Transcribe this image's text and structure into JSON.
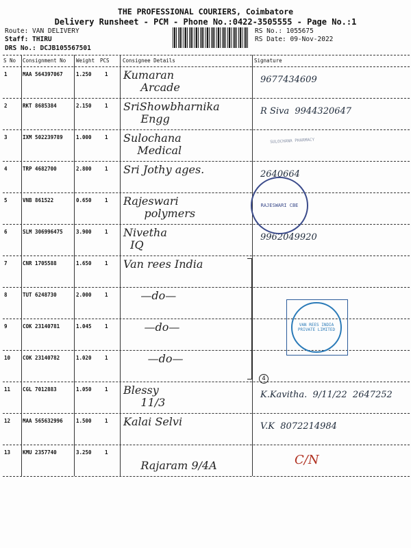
{
  "header": {
    "company": "THE PROFESSIONAL COURIERS, Coimbatore",
    "subtitle": "Delivery Runsheet - PCM - Phone No.:0422-3505555 - Page No.:1",
    "route": "Route: VAN DELIVERY",
    "staff": "Staff: THIRU",
    "drs": "DRS No.: DCJB105567501",
    "rs_no": "RS No.: 1055675",
    "rs_date": "RS Date: 09-Nov-2022"
  },
  "columns": [
    "S No",
    "Consignment No",
    "Weight",
    "PCS",
    "Consignee Details",
    "Signature"
  ],
  "rows": [
    {
      "sno": "1",
      "consignment": "MAA 564397067",
      "weight": "1.250",
      "pcs": "1",
      "consignee": "Kumaran\n     Arcade",
      "signature": "9677434609"
    },
    {
      "sno": "2",
      "consignment": "RKT 8685384",
      "weight": "2.150",
      "pcs": "1",
      "consignee": "SriShowbharnika\n     Engg",
      "signature": "R Siva  9944320647"
    },
    {
      "sno": "3",
      "consignment": "IXM 502239789",
      "weight": "1.000",
      "pcs": "1",
      "consignee": "Sulochana\n    Medical",
      "signature": ""
    },
    {
      "sno": "4",
      "consignment": "TRP 4682700",
      "weight": "2.800",
      "pcs": "1",
      "consignee": "Sri Jothy ages.",
      "signature": "2640664"
    },
    {
      "sno": "5",
      "consignment": "VNB 861522",
      "weight": "0.650",
      "pcs": "1",
      "consignee": "Rajeswari\n      polymers",
      "signature": ""
    },
    {
      "sno": "6",
      "consignment": "SLM 306996475",
      "weight": "3.900",
      "pcs": "1",
      "consignee": "Nivetha\n  IQ",
      "signature": "9962049920"
    },
    {
      "sno": "7",
      "consignment": "CNR 1705588",
      "weight": "1.650",
      "pcs": "1",
      "consignee": "Van rees India",
      "signature": ""
    },
    {
      "sno": "8",
      "consignment": "TUT 6248730",
      "weight": "2.000",
      "pcs": "1",
      "consignee": "     —do—",
      "signature": ""
    },
    {
      "sno": "9",
      "consignment": "COK 23140781",
      "weight": "1.045",
      "pcs": "1",
      "consignee": "      —do—",
      "signature": ""
    },
    {
      "sno": "10",
      "consignment": "COK 23140782",
      "weight": "1.020",
      "pcs": "1",
      "consignee": "       —do—",
      "signature": ""
    },
    {
      "sno": "11",
      "consignment": "CGL 7012883",
      "weight": "1.050",
      "pcs": "1",
      "consignee": "Blessy\n     11/3",
      "signature": "K.Kavitha.  9/11/22  2647252"
    },
    {
      "sno": "12",
      "consignment": "MAA 565632996",
      "weight": "1.500",
      "pcs": "1",
      "consignee": "Kalai Selvi",
      "signature": "V.K  8072214984"
    },
    {
      "sno": "13",
      "consignment": "KMU 2357740",
      "weight": "3.250",
      "pcs": "1",
      "consignee": "\n     Rajaram 9/4A",
      "signature": "C/N"
    }
  ],
  "bracket_note": "4",
  "stamps": {
    "rajeswari": "RAJESWARI  CBE",
    "vanrees": "VAN REES INDIA PRIVATE LIMITED",
    "sulochana": "SULOCHANA PHARMACY"
  },
  "colors": {
    "ink": "#222222",
    "stamp_blue": "#2a7ab8",
    "stamp_purple": "#3a4a8a",
    "red_ink": "#b03020"
  }
}
